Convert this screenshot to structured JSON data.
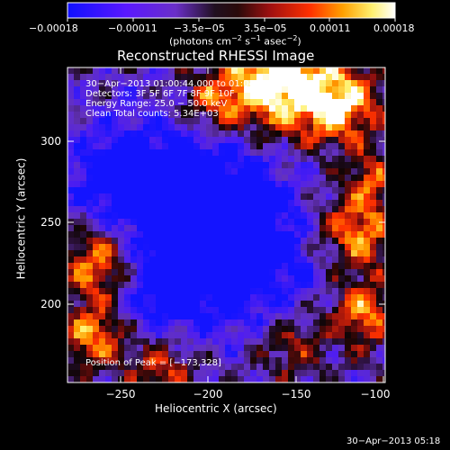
{
  "colorbar": {
    "ticks": [
      "−0.00018",
      "−0.00011",
      "−3.5e−05",
      "3.5e−05",
      "0.00011",
      "0.00018"
    ],
    "units_prefix": "(photons cm",
    "units_sup1": "−2",
    "units_mid1": " s",
    "units_sup2": "−1",
    "units_mid2": " asec",
    "units_sup3": "−2",
    "units_suffix": ")"
  },
  "title": "Reconstructed RHESSI Image",
  "info_lines": [
    "30−Apr−2013 01:00:44.000 to 01:04:42.000",
    "Detectors: 3F 5F 6F 7F 8F 9F 10F",
    "Energy Range: 25.0 − 50.0 keV",
    "Clean     Total counts: 5.34E+03"
  ],
  "peak_label": "Position of Peak = [−173,328]",
  "axes": {
    "xlabel": "Heliocentric X (arcsec)",
    "ylabel": "Heliocentric Y (arcsec)",
    "xticks": [
      "−250",
      "−200",
      "−150",
      "−100"
    ],
    "yticks": [
      "300",
      "250",
      "200"
    ]
  },
  "footer_timestamp": "30−Apr−2013 05:18",
  "colors": {
    "background": "#000000",
    "negative_low": "#1010ff",
    "near_zero": "#000000",
    "positive_high": "#ffffff"
  }
}
